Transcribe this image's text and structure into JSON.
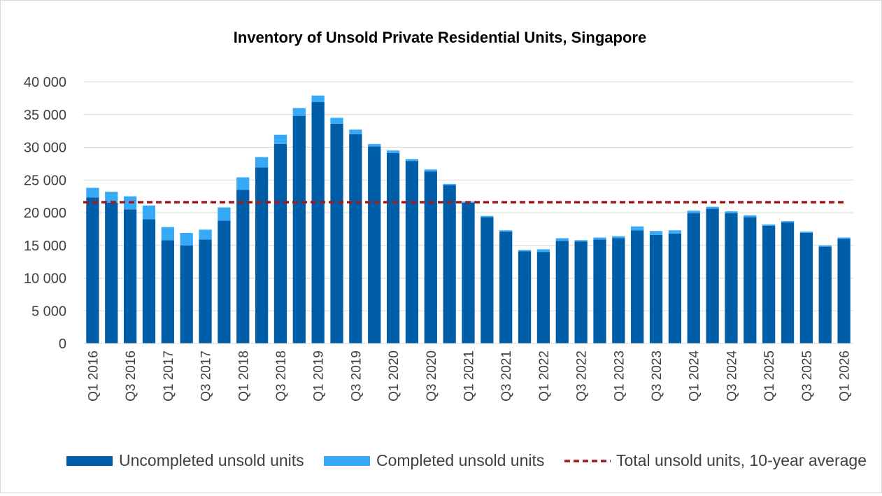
{
  "chart_data": {
    "type": "bar",
    "stacked": true,
    "title": "Inventory of Unsold Private Residential Units, Singapore",
    "xlabel": "",
    "ylabel": "",
    "ylim": [
      0,
      40000
    ],
    "yticks": [
      0,
      5000,
      10000,
      15000,
      20000,
      25000,
      30000,
      35000,
      40000
    ],
    "ytick_labels": [
      "0",
      "5 000",
      "10 000",
      "15 000",
      "20 000",
      "25 000",
      "30 000",
      "35 000",
      "40 000"
    ],
    "grid": true,
    "legend_position": "bottom",
    "categories": [
      "Q1 2016",
      "Q2 2016",
      "Q3 2016",
      "Q4 2016",
      "Q1 2017",
      "Q2 2017",
      "Q3 2017",
      "Q4 2017",
      "Q1 2018",
      "Q2 2018",
      "Q3 2018",
      "Q4 2018",
      "Q1 2019",
      "Q2 2019",
      "Q3 2019",
      "Q4 2019",
      "Q1 2020",
      "Q2 2020",
      "Q3 2020",
      "Q4 2020",
      "Q1 2021",
      "Q2 2021",
      "Q3 2021",
      "Q4 2021",
      "Q1 2022",
      "Q2 2022",
      "Q3 2022",
      "Q4 2022",
      "Q1 2023",
      "Q2 2023",
      "Q3 2023",
      "Q4 2023",
      "Q1 2024",
      "Q2 2024",
      "Q3 2024",
      "Q4 2024",
      "Q1 2025",
      "Q2 2025",
      "Q3 2025",
      "Q4 2025",
      "Q1 2026"
    ],
    "x_tick_labels": [
      "Q1 2016",
      "",
      "Q3 2016",
      "",
      "Q1 2017",
      "",
      "Q3 2017",
      "",
      "Q1 2018",
      "",
      "Q3 2018",
      "",
      "Q1 2019",
      "",
      "Q3 2019",
      "",
      "Q1 2020",
      "",
      "Q3 2020",
      "",
      "Q1 2021",
      "",
      "Q3 2021",
      "",
      "Q1 2022",
      "",
      "Q3 2022",
      "",
      "Q1 2023",
      "",
      "Q3 2023",
      "",
      "Q1 2024",
      "",
      "Q3 2024",
      "",
      "Q1 2025",
      "",
      "Q3 2025",
      "",
      "Q1 2026"
    ],
    "series": [
      {
        "name": "Uncompleted unsold units",
        "color": "#005ea8",
        "values": [
          22300,
          21500,
          20500,
          19000,
          15800,
          15000,
          15900,
          18800,
          23500,
          26900,
          30500,
          34800,
          36900,
          33600,
          32000,
          30100,
          29100,
          27900,
          26300,
          24200,
          21500,
          19300,
          17100,
          14100,
          14000,
          15700,
          15600,
          15900,
          16100,
          17300,
          16600,
          16800,
          19900,
          20600,
          19900,
          19300,
          18000,
          18500,
          16900,
          14800,
          16000
        ]
      },
      {
        "name": "Completed unsold units",
        "color": "#36a9f7",
        "values": [
          1500,
          1700,
          2000,
          2100,
          2000,
          1900,
          1500,
          2000,
          1900,
          1600,
          1400,
          1200,
          1000,
          900,
          700,
          400,
          400,
          300,
          300,
          200,
          200,
          200,
          200,
          200,
          400,
          400,
          200,
          300,
          300,
          600,
          600,
          500,
          400,
          300,
          300,
          300,
          200,
          200,
          200,
          200,
          200
        ]
      }
    ],
    "average_line": {
      "name": "Total unsold units, 10-year average",
      "value": 21600,
      "color": "#a01b1b"
    }
  }
}
